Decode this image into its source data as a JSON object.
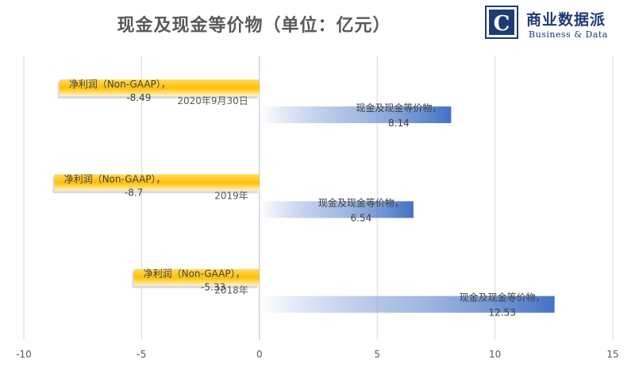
{
  "title": "现金及现金等价物（单位：亿元）",
  "logo": {
    "letter": "C",
    "name": "商业数据派",
    "sub": "Business & Data"
  },
  "colors": {
    "net_profit": "#ffc000",
    "cash": "#4472c4",
    "grid": "#d9d9d9",
    "logo": "#1f3b73"
  },
  "chart_data": {
    "type": "bar",
    "orientation": "horizontal",
    "title": "现金及现金等价物（单位：亿元）",
    "categories": [
      "2020年9月30日",
      "2019年",
      "2018年"
    ],
    "series": [
      {
        "name": "净利润（Non-GAAP）",
        "values": [
          -8.49,
          -8.7,
          -5.33
        ]
      },
      {
        "name": "现金及现金等价物",
        "values": [
          8.14,
          6.54,
          12.53
        ]
      }
    ],
    "xlim": [
      -10,
      15
    ],
    "xticks": [
      -10,
      -5,
      0,
      5,
      10,
      15
    ],
    "xtick_labels": [
      "-10",
      "-5",
      "0",
      "5",
      "10",
      "15"
    ],
    "data_labels": [
      [
        "净利润（Non-GAAP），",
        "-8.49"
      ],
      [
        "现金及现金等价物，",
        "8.14"
      ],
      [
        "净利润（Non-GAAP），",
        "-8.7"
      ],
      [
        "现金及现金等价物，",
        "6.54"
      ],
      [
        "净利润（Non-GAAP），",
        "-5.33"
      ],
      [
        "现金及现金等价物，",
        "12.53"
      ]
    ],
    "grid": true,
    "legend": "none"
  }
}
